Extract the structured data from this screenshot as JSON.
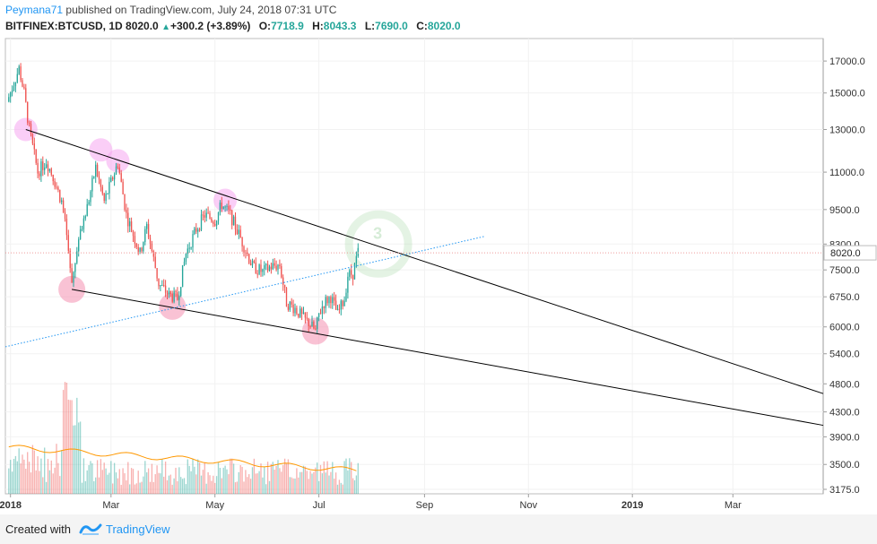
{
  "header": {
    "author": "Peymana71",
    "published": "published on TradingView.com, July 24, 2018 07:31 UTC",
    "symbol": "BITFINEX:BTCUSD, 1D",
    "last": "8020.0",
    "change_arrow": "▲",
    "change": "+300.2 (+3.89%)",
    "o_label": "O:",
    "o_value": "7718.9",
    "h_label": "H:",
    "h_value": "8043.3",
    "l_label": "L:",
    "l_value": "7690.0",
    "c_label": "C:",
    "c_value": "8020.0"
  },
  "footer": {
    "created_with": "Created with",
    "brand": "TradingView"
  },
  "colors": {
    "up": "#26a69a",
    "down": "#ef5350",
    "trendline": "#000000",
    "dotted_line": "#2196f3",
    "volume_ma": "#ff9800",
    "pink_marker": "#f48fb1",
    "magenta_marker": "#f6a6f0",
    "green_marker": "#a5d6a7"
  },
  "chart_data": {
    "type": "candlestick",
    "y_scale": "log",
    "ylim": [
      3175,
      17800
    ],
    "x_range": [
      "2017-12-29",
      "2019-04-23"
    ],
    "current_price": "8020.0",
    "y_ticks": [
      "17000.0",
      "15000.0",
      "13000.0",
      "11000.0",
      "9500.0",
      "8300.0",
      "7500.0",
      "6750.0",
      "6000.0",
      "5400.0",
      "4800.0",
      "4300.0",
      "3900.0",
      "3500.0",
      "3175.0"
    ],
    "x_ticks": [
      {
        "label": "2018",
        "date": "2018-01-01",
        "bold": true
      },
      {
        "label": "Mar",
        "date": "2018-03-01",
        "bold": false
      },
      {
        "label": "May",
        "date": "2018-05-01",
        "bold": false
      },
      {
        "label": "Jul",
        "date": "2018-07-01",
        "bold": false
      },
      {
        "label": "Sep",
        "date": "2018-09-01",
        "bold": false
      },
      {
        "label": "Nov",
        "date": "2018-11-01",
        "bold": false
      },
      {
        "label": "2019",
        "date": "2019-01-01",
        "bold": true
      },
      {
        "label": "Mar",
        "date": "2019-03-01",
        "bold": false
      }
    ],
    "price_path": [
      [
        "2017-12-30",
        14500
      ],
      [
        "2018-01-06",
        16500
      ],
      [
        "2018-01-09",
        15000
      ],
      [
        "2018-01-12",
        13000
      ],
      [
        "2018-01-17",
        11000
      ],
      [
        "2018-01-22",
        11500
      ],
      [
        "2018-01-26",
        10800
      ],
      [
        "2018-01-31",
        9800
      ],
      [
        "2018-02-03",
        8600
      ],
      [
        "2018-02-06",
        7000
      ],
      [
        "2018-02-09",
        8200
      ],
      [
        "2018-02-14",
        9300
      ],
      [
        "2018-02-20",
        11200
      ],
      [
        "2018-02-25",
        9800
      ],
      [
        "2018-03-05",
        11400
      ],
      [
        "2018-03-10",
        9300
      ],
      [
        "2018-03-18",
        8000
      ],
      [
        "2018-03-22",
        8900
      ],
      [
        "2018-03-29",
        7100
      ],
      [
        "2018-04-04",
        6800
      ],
      [
        "2018-04-09",
        6700
      ],
      [
        "2018-04-14",
        8000
      ],
      [
        "2018-04-20",
        8800
      ],
      [
        "2018-04-25",
        9300
      ],
      [
        "2018-05-01",
        9100
      ],
      [
        "2018-05-05",
        9700
      ],
      [
        "2018-05-10",
        9300
      ],
      [
        "2018-05-16",
        8500
      ],
      [
        "2018-05-23",
        7600
      ],
      [
        "2018-05-29",
        7450
      ],
      [
        "2018-06-03",
        7600
      ],
      [
        "2018-06-08",
        7650
      ],
      [
        "2018-06-12",
        6600
      ],
      [
        "2018-06-17",
        6450
      ],
      [
        "2018-06-22",
        6200
      ],
      [
        "2018-06-25",
        6100
      ],
      [
        "2018-06-29",
        5900
      ],
      [
        "2018-07-01",
        6300
      ],
      [
        "2018-07-04",
        6600
      ],
      [
        "2018-07-08",
        6750
      ],
      [
        "2018-07-12",
        6300
      ],
      [
        "2018-07-16",
        6700
      ],
      [
        "2018-07-18",
        7350
      ],
      [
        "2018-07-21",
        7400
      ],
      [
        "2018-07-24",
        8020
      ]
    ],
    "trendlines": [
      {
        "name": "upper",
        "from": [
          "2018-01-10",
          13000
        ],
        "to": [
          "2019-04-23",
          4620
        ]
      },
      {
        "name": "lower",
        "from": [
          "2018-02-06",
          6950
        ],
        "to": [
          "2019-04-23",
          4080
        ]
      },
      {
        "name": "rising-dotted",
        "from": [
          "2017-12-29",
          5550
        ],
        "to": [
          "2018-10-06",
          8550
        ]
      }
    ],
    "markers": [
      {
        "date": "2018-01-10",
        "price": 13000,
        "color": "magenta"
      },
      {
        "date": "2018-02-23",
        "price": 12000,
        "color": "magenta"
      },
      {
        "date": "2018-03-05",
        "price": 11500,
        "color": "magenta"
      },
      {
        "date": "2018-05-07",
        "price": 9850,
        "color": "magenta"
      },
      {
        "date": "2018-02-06",
        "price": 6950,
        "color": "pink"
      },
      {
        "date": "2018-04-06",
        "price": 6500,
        "color": "pink"
      },
      {
        "date": "2018-06-29",
        "price": 5900,
        "color": "pink"
      },
      {
        "date": "2018-08-05",
        "price": 8300,
        "color": "green"
      }
    ]
  }
}
